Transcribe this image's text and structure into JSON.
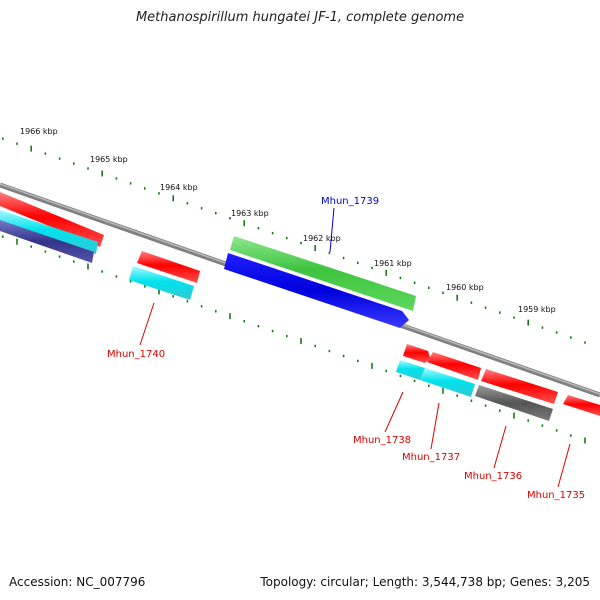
{
  "title": "Methanospirillum hungatei JF-1, complete genome",
  "footer": {
    "accession": "Accession: NC_007796",
    "topology": "Topology: circular; Length: 3,544,738 bp; Genes: 3,205"
  },
  "scale_labels": [
    "1966 kbp",
    "1965 kbp",
    "1964 kbp",
    "1963 kbp",
    "1962 kbp",
    "1961 kbp",
    "1960 kbp",
    "1959 kbp"
  ],
  "gene_labels": {
    "g1739": "Mhun_1739",
    "g1740": "Mhun_1740",
    "g1738": "Mhun_1738",
    "g1737": "Mhun_1737",
    "g1736": "Mhun_1736",
    "g1735": "Mhun_1735"
  },
  "colors": {
    "forward_cds": "#ff0000",
    "reverse_cds": "#ff0000",
    "green_feature": "#44cc44",
    "blue_feature": "#0000ee",
    "cyan_feature": "#00e5ee",
    "grey_feature": "#666666",
    "backbone": "#888888",
    "tick": "#1a7a1a",
    "label_red": "#dd0000",
    "label_blue": "#0000cc"
  }
}
